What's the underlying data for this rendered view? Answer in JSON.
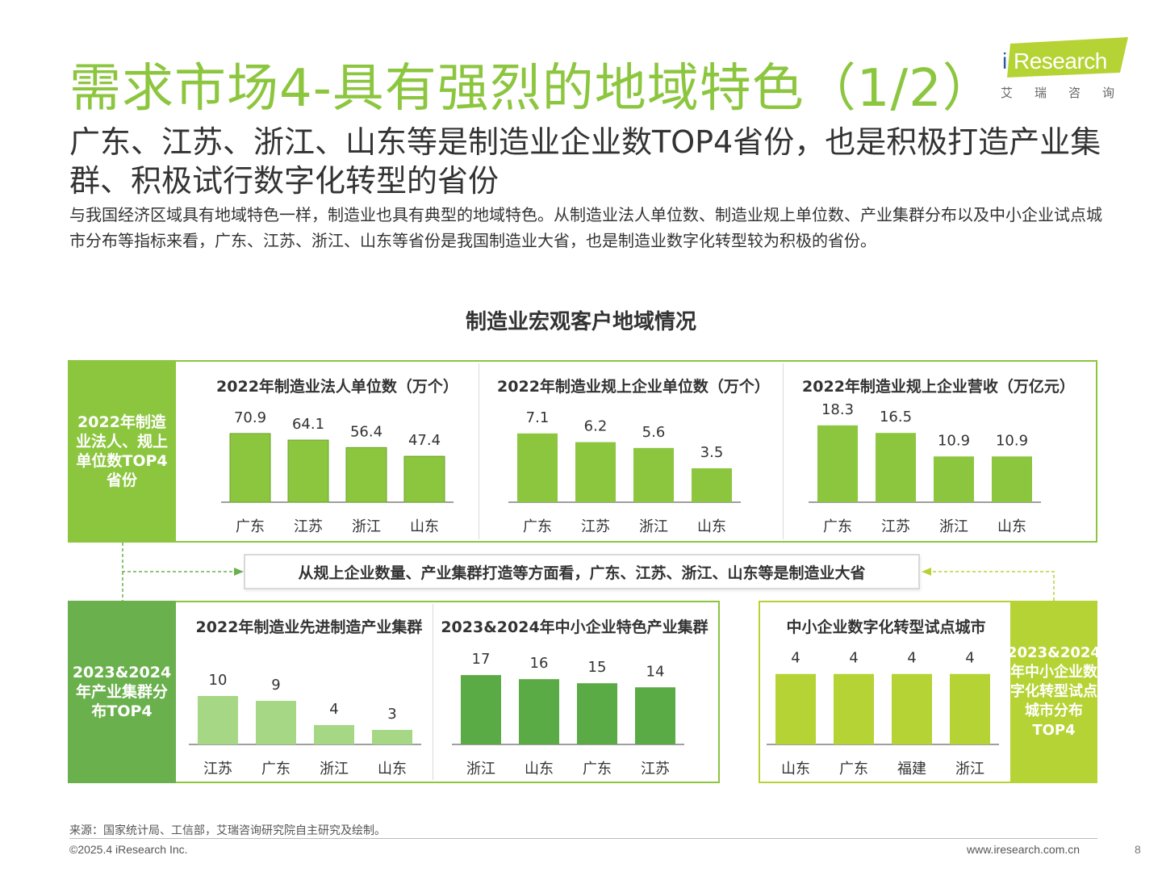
{
  "header": {
    "title": "需求市场4-具有强烈的地域特色（1/2）",
    "subtitle": "广东、江苏、浙江、山东等是制造业企业数TOP4省份，也是积极打造产业集群、积极试行数字化转型的省份",
    "description": "与我国经济区域具有地域特色一样，制造业也具有典型的地域特色。从制造业法人单位数、制造业规上单位数、产业集群分布以及中小企业试点城市分布等指标来看，广东、江苏、浙江、山东等省份是我国制造业大省，也是制造业数字化转型较为积极的省份。"
  },
  "logo": {
    "text": "Research",
    "i": "i",
    "cn": "艾瑞咨询"
  },
  "section_title": "制造业宏观客户地域情况",
  "labels": {
    "top_left": "2022年制造业法人、规上单位数TOP4省份",
    "bottom_left": "2023&2024年产业集群分布TOP4",
    "bottom_right": "2023&2024年中小企业数字化转型试点城市分布TOP4"
  },
  "callout": "从规上企业数量、产业集群打造等方面看，广东、江苏、浙江、山东等是制造业大省",
  "colors": {
    "green": "#8cc63f",
    "dark_green": "#6ab04c",
    "mid_green": "#5aaa46",
    "light_green": "#a6d785",
    "lime": "#b5d334"
  },
  "chart_data": [
    {
      "id": "c1",
      "type": "bar",
      "title": "2022年制造业法人单位数（万个）",
      "categories": [
        "广东",
        "江苏",
        "浙江",
        "山东"
      ],
      "values": [
        70.9,
        64.1,
        56.4,
        47.4
      ],
      "value_labels": [
        "70.9",
        "64.1",
        "56.4",
        "47.4"
      ],
      "ylim": [
        0,
        80
      ]
    },
    {
      "id": "c2",
      "type": "bar",
      "title": "2022年制造业规上企业单位数（万个）",
      "categories": [
        "广东",
        "江苏",
        "浙江",
        "山东"
      ],
      "values": [
        7.1,
        6.2,
        5.6,
        3.5
      ],
      "value_labels": [
        "7.1",
        "6.2",
        "5.6",
        "3.5"
      ],
      "ylim": [
        0,
        8
      ]
    },
    {
      "id": "c3",
      "type": "bar",
      "title": "2022年制造业规上企业营收（万亿元）",
      "categories": [
        "广东",
        "江苏",
        "浙江",
        "山东"
      ],
      "values": [
        18.3,
        16.5,
        10.9,
        10.9
      ],
      "value_labels": [
        "18.3",
        "16.5",
        "10.9",
        "10.9"
      ],
      "ylim": [
        0,
        20
      ]
    },
    {
      "id": "c4",
      "type": "bar",
      "title": "2022年制造业先进制造产业集群",
      "categories": [
        "江苏",
        "广东",
        "浙江",
        "山东"
      ],
      "values": [
        10,
        9,
        4,
        3
      ],
      "value_labels": [
        "10",
        "9",
        "4",
        "3"
      ],
      "ylim": [
        0,
        16
      ]
    },
    {
      "id": "c5",
      "type": "bar",
      "title": "2023&2024年中小企业特色产业集群",
      "categories": [
        "浙江",
        "山东",
        "广东",
        "江苏"
      ],
      "values": [
        17,
        16,
        15,
        14
      ],
      "value_labels": [
        "17",
        "16",
        "15",
        "14"
      ],
      "ylim": [
        0,
        19
      ]
    },
    {
      "id": "c6",
      "type": "bar",
      "title": "中小企业数字化转型试点城市",
      "categories": [
        "山东",
        "广东",
        "福建",
        "浙江"
      ],
      "values": [
        4,
        4,
        4,
        4
      ],
      "value_labels": [
        "4",
        "4",
        "4",
        "4"
      ],
      "ylim": [
        0,
        4.4
      ]
    }
  ],
  "footer": {
    "source": "来源：国家统计局、工信部，艾瑞咨询研究院自主研究及绘制。",
    "copyright": "©2025.4 iResearch Inc.",
    "url": "www.iresearch.com.cn",
    "page": "8"
  }
}
